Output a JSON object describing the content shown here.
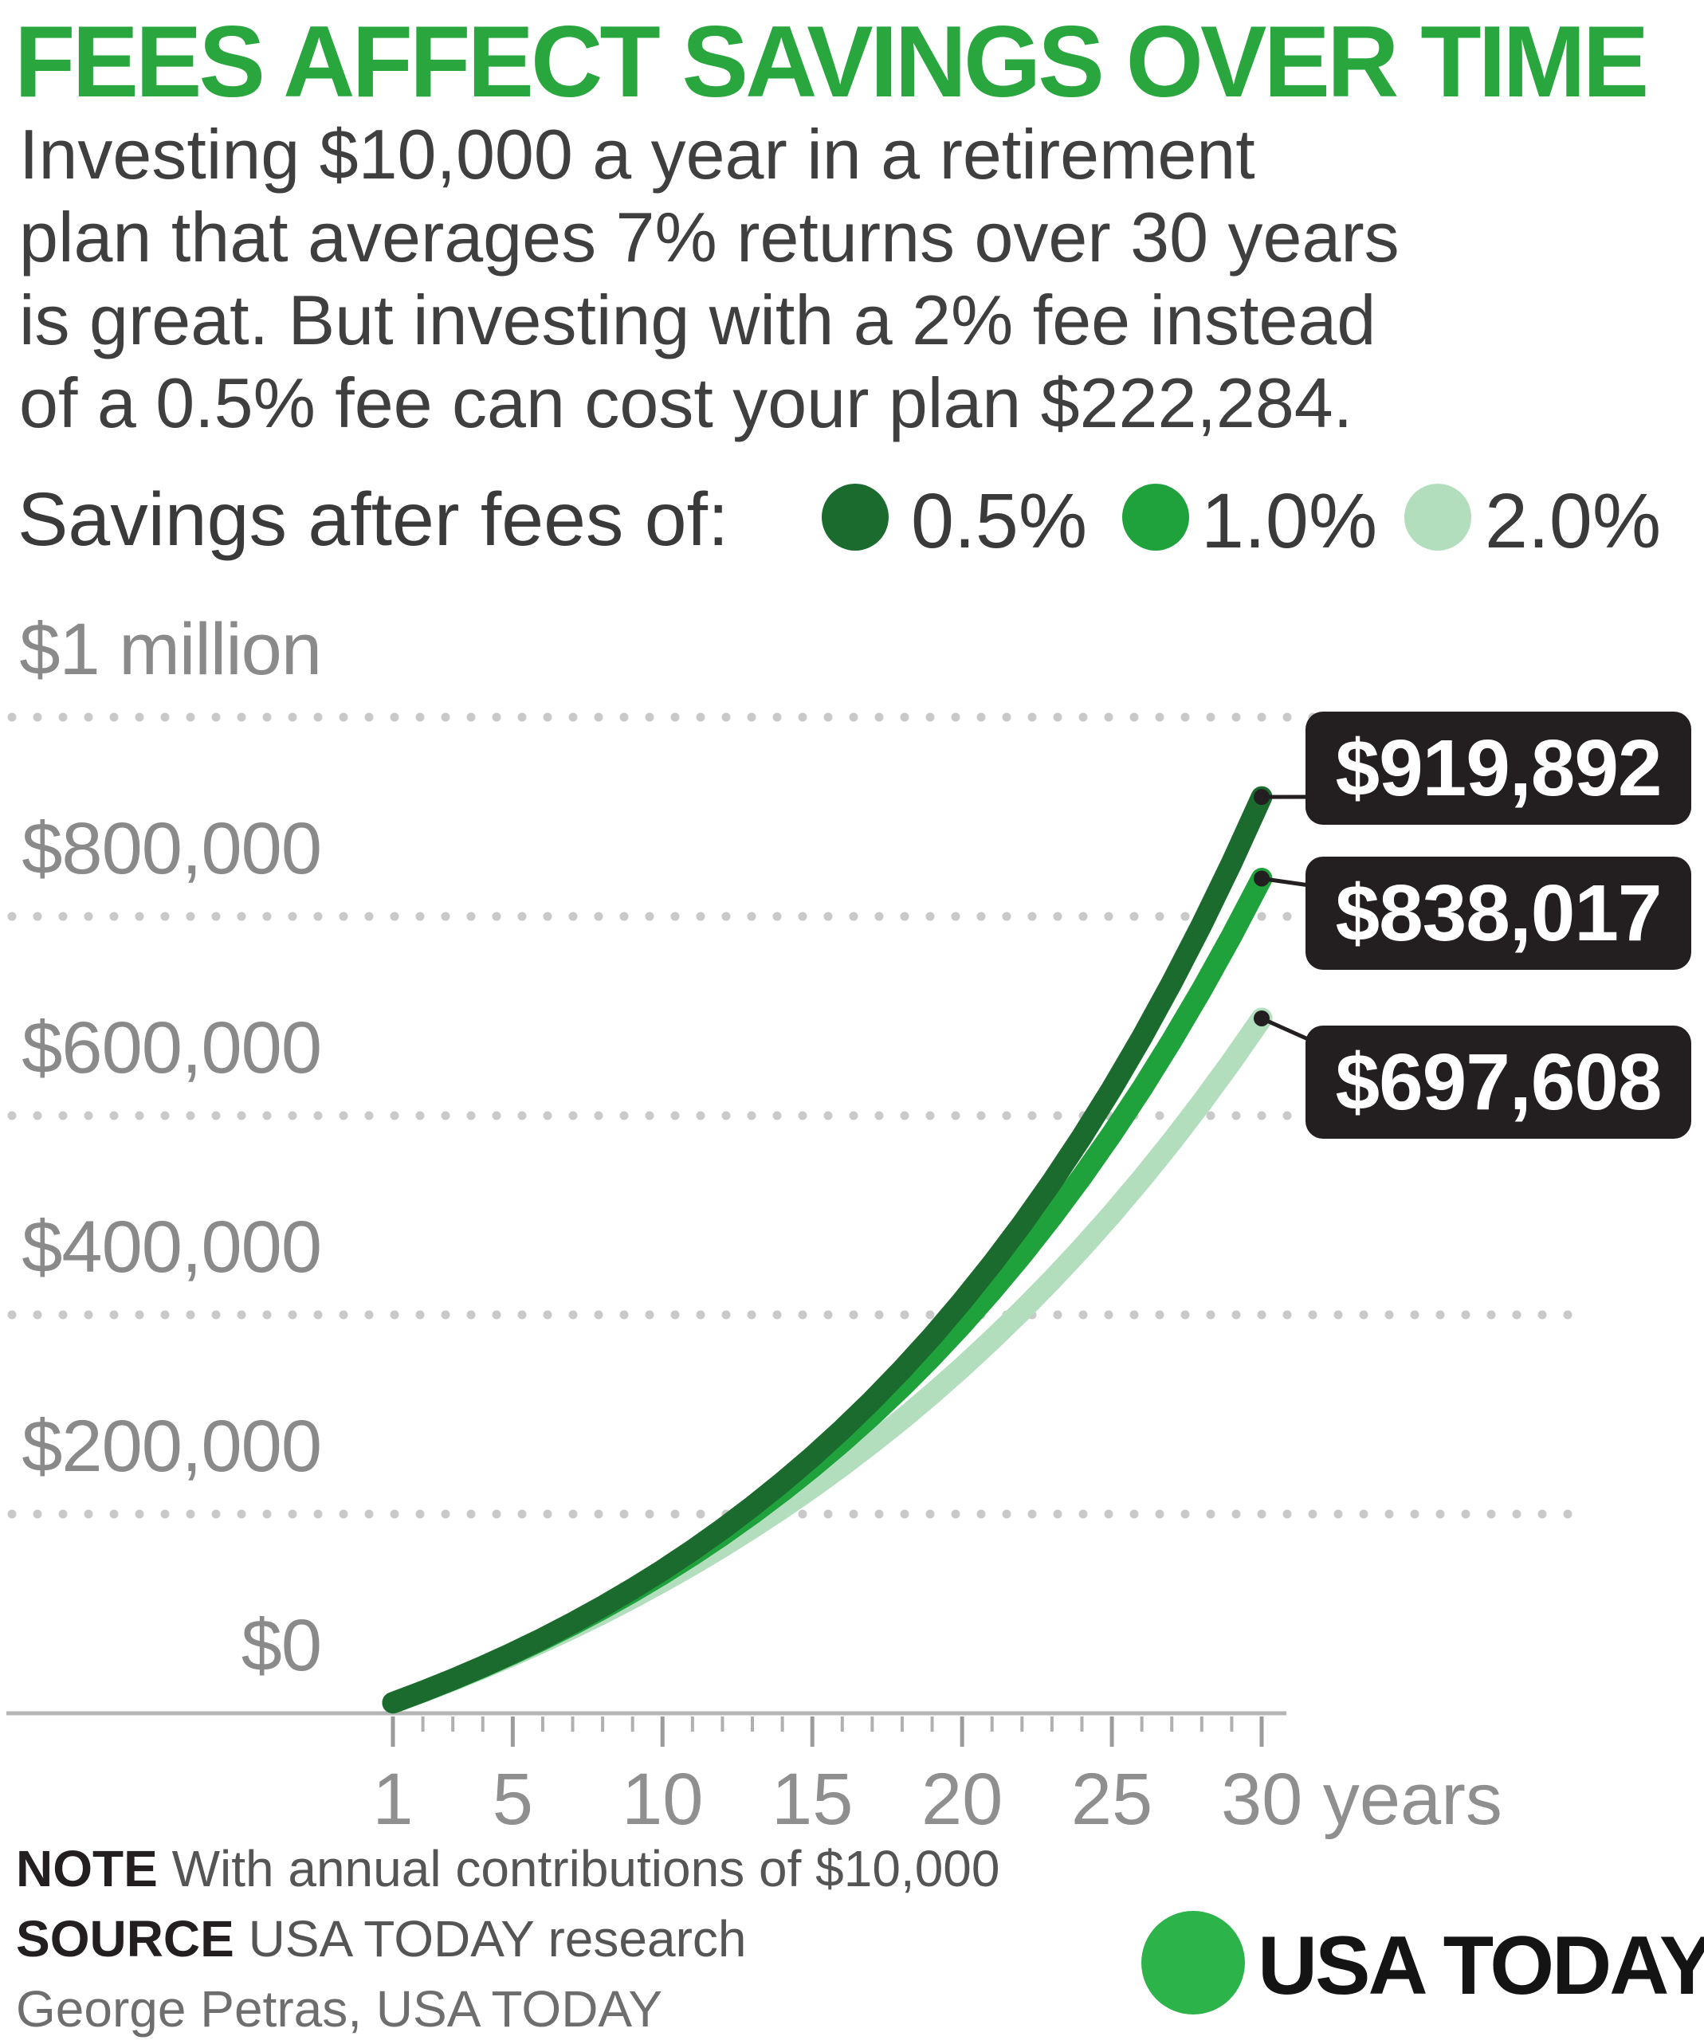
{
  "header": {
    "title": "FEES AFFECT SAVINGS OVER TIME",
    "intro_lines": [
      "Investing $10,000 a year in a retirement",
      "plan that averages 7% returns over 30 years",
      "is great. But investing with a 2% fee instead",
      "of a 0.5% fee can cost your plan $222,284."
    ]
  },
  "legend": {
    "label": "Savings after fees of:",
    "items": [
      {
        "label": "0.5%",
        "color": "#1B6B2F"
      },
      {
        "label": "1.0%",
        "color": "#1FA23C"
      },
      {
        "label": "2.0%",
        "color": "#B2DEBD"
      }
    ]
  },
  "chart_data": {
    "type": "line",
    "title": "Savings after fees of 0.5%, 1.0% and 2.0%",
    "xlabel": "years",
    "ylabel": "",
    "x": [
      1,
      2,
      3,
      4,
      5,
      6,
      7,
      8,
      9,
      10,
      11,
      12,
      13,
      14,
      15,
      16,
      17,
      18,
      19,
      20,
      21,
      22,
      23,
      24,
      25,
      26,
      27,
      28,
      29,
      30
    ],
    "x_ticks": [
      {
        "value": 1,
        "label": "1"
      },
      {
        "value": 5,
        "label": "5"
      },
      {
        "value": 10,
        "label": "10"
      },
      {
        "value": 15,
        "label": "15"
      },
      {
        "value": 20,
        "label": "20"
      },
      {
        "value": 25,
        "label": "25"
      },
      {
        "value": 30,
        "label": "30 years"
      }
    ],
    "y_axis": {
      "range": [
        0,
        1000000
      ],
      "grid": "dotted",
      "labels": [
        {
          "value": 1000000,
          "label": "$1 million"
        },
        {
          "value": 800000,
          "label": "$800,000"
        },
        {
          "value": 600000,
          "label": "$600,000"
        },
        {
          "value": 400000,
          "label": "$400,000"
        },
        {
          "value": 200000,
          "label": "$200,000"
        },
        {
          "value": 0,
          "label": "$0"
        }
      ]
    },
    "series": [
      {
        "name": "0.5% fee",
        "color": "#1B6B2F",
        "end_label": "$919,892",
        "end_value": 919892,
        "values": [
          10650,
          21992,
          34072,
          46936,
          60637,
          75229,
          90769,
          107319,
          124945,
          143716,
          163708,
          184999,
          207674,
          231823,
          257541,
          284931,
          314101,
          345168,
          378254,
          413490,
          451017,
          490983,
          533547,
          578878,
          627155,
          678570,
          733327,
          791643,
          853750,
          919892
        ]
      },
      {
        "name": "1.0% fee",
        "color": "#1FA23C",
        "end_label": "$838,017",
        "end_value": 838017,
        "values": [
          10600,
          21836,
          33746,
          46371,
          59753,
          73938,
          88975,
          104913,
          121808,
          139716,
          158699,
          178821,
          200151,
          222760,
          246725,
          272129,
          299057,
          327600,
          357856,
          389927,
          423923,
          459958,
          498156,
          538645,
          581564,
          627058,
          675281,
          726398,
          780582,
          838017
        ]
      },
      {
        "name": "2.0% fee",
        "color": "#B2DEBD",
        "end_label": "$697,608",
        "end_value": 697608,
        "values": [
          10500,
          21525,
          33101,
          45256,
          58019,
          71420,
          85491,
          100266,
          115779,
          132068,
          149171,
          167130,
          185986,
          205786,
          226575,
          248404,
          271324,
          295390,
          320660,
          347193,
          375052,
          404305,
          435020,
          467271,
          501135,
          536691,
          574026,
          613227,
          654389,
          697608
        ]
      }
    ],
    "annotations": [
      "$919,892",
      "$838,017",
      "$697,608"
    ],
    "legend_position": "top"
  },
  "footer": {
    "note_label": "NOTE",
    "note_text": "With annual contributions of $10,000",
    "source_label": "SOURCE",
    "source_text": "USA TODAY research",
    "byline": "George Petras, USA TODAY",
    "logo_text": "USA TODAY"
  },
  "colors": {
    "title_green": "#2AA63F",
    "logo_green": "#2CB34A",
    "fee_05": "#1B6B2F",
    "fee_10": "#1FA23C",
    "fee_20": "#B2DEBD",
    "label_box": "#231F20",
    "grid_dot": "#C9C9C9",
    "axis_line": "#B5B5B5",
    "tick": "#A3A3A3",
    "axis_text": "#8A8A8A",
    "body_text": "#3F3F3F"
  }
}
